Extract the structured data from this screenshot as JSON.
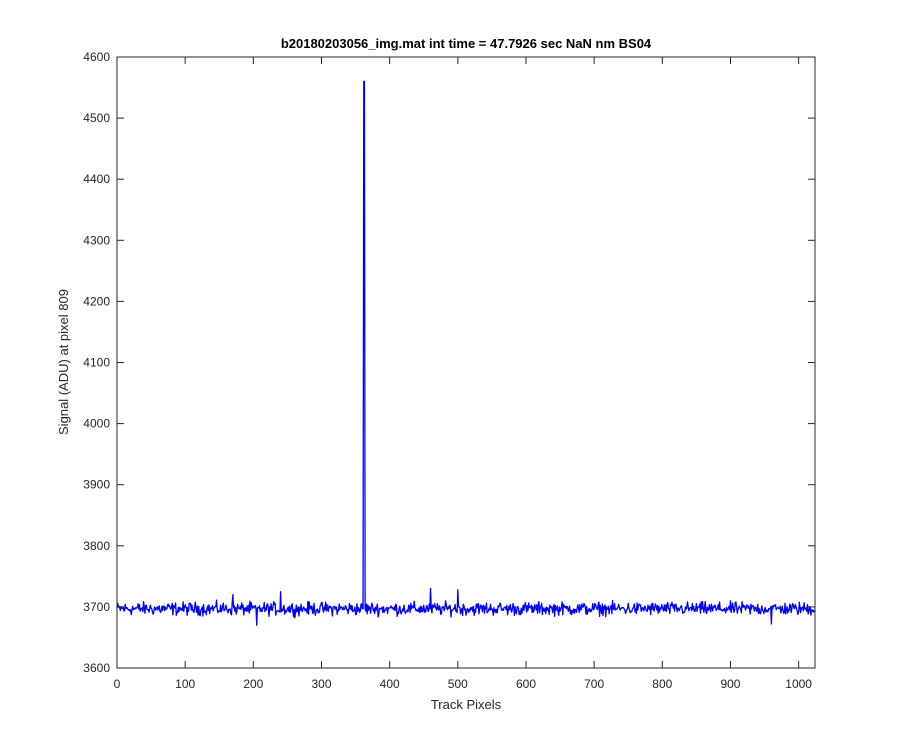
{
  "chart_data": {
    "type": "line",
    "title": "b20180203056_img.mat int time = 47.7926 sec  NaN nm BS04",
    "xlabel": "Track Pixels",
    "ylabel": "Signal (ADU) at pixel 809",
    "xlim": [
      0,
      1024
    ],
    "ylim": [
      3600,
      4600
    ],
    "xticks": [
      0,
      100,
      200,
      300,
      400,
      500,
      600,
      700,
      800,
      900,
      1000
    ],
    "yticks": [
      3600,
      3700,
      3800,
      3900,
      4000,
      4100,
      4200,
      4300,
      4400,
      4500,
      4600
    ],
    "grid": false,
    "legend": "none",
    "series": [
      {
        "color": "#0000ff",
        "baseline": 3697,
        "noise_amplitude": 8,
        "n_points": 1024,
        "spike": {
          "x": [
            361,
            362,
            363,
            364
          ],
          "y": [
            3697,
            4560,
            4560,
            3697
          ]
        },
        "notable_points": [
          {
            "x": 170,
            "y": 3720
          },
          {
            "x": 205,
            "y": 3670
          },
          {
            "x": 240,
            "y": 3725
          },
          {
            "x": 460,
            "y": 3730
          },
          {
            "x": 500,
            "y": 3728
          },
          {
            "x": 960,
            "y": 3672
          }
        ]
      }
    ]
  }
}
